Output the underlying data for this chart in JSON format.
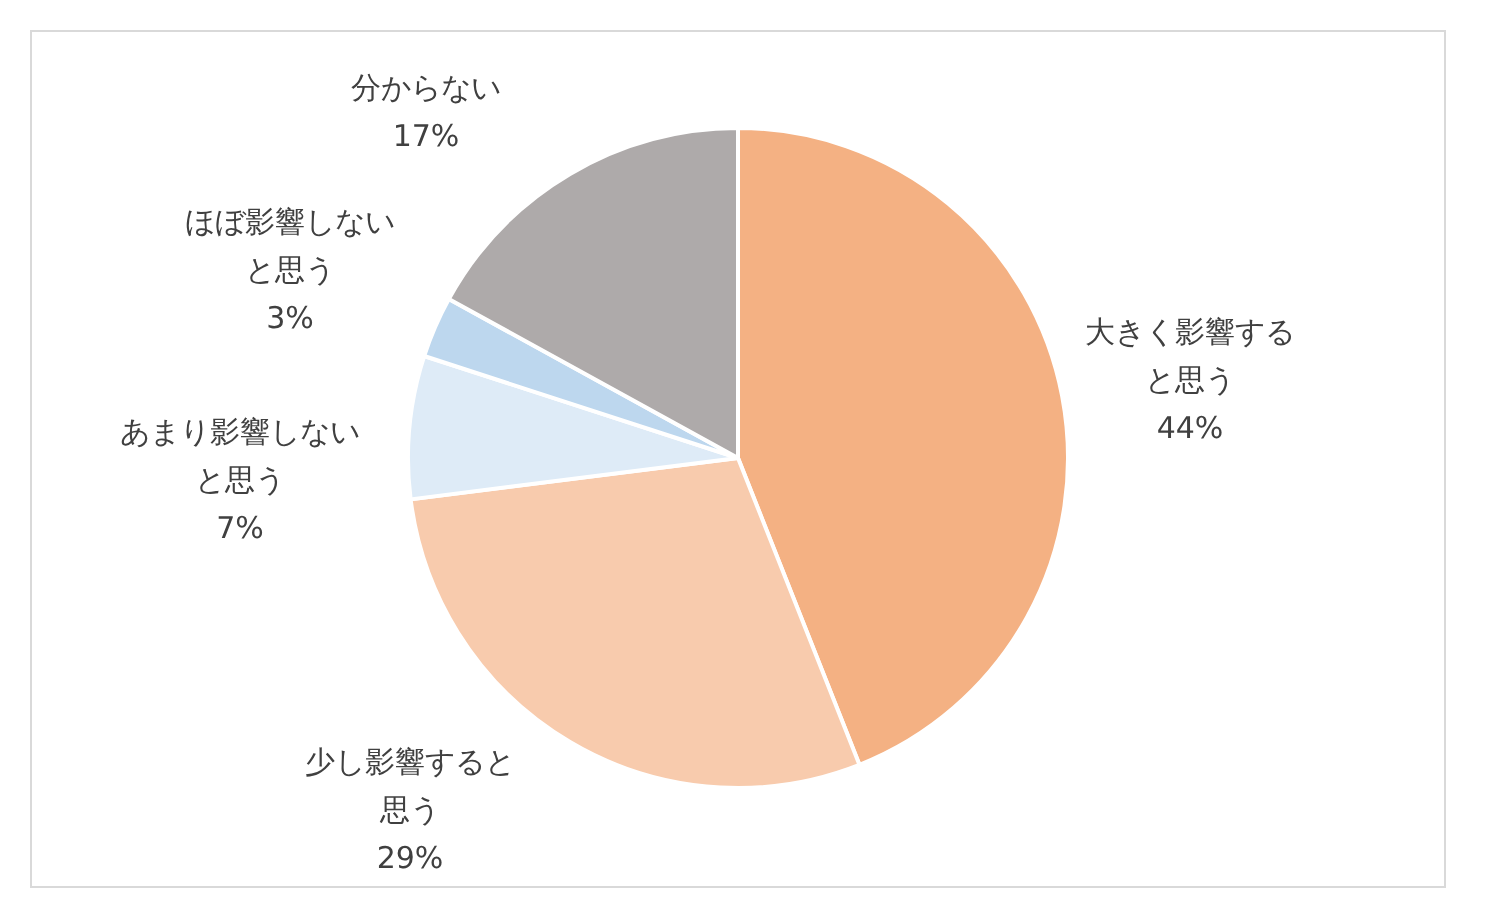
{
  "chart_data": {
    "type": "pie",
    "categories": [
      "大きく影響すると思う",
      "少し影響すると思う",
      "あまり影響しないと思う",
      "ほぼ影響しないと思う",
      "分からない"
    ],
    "values": [
      44,
      29,
      7,
      3,
      17
    ],
    "colors": [
      "#f4b183",
      "#f8cbad",
      "#deebf7",
      "#bdd7ee",
      "#aeaaaa"
    ],
    "value_labels": [
      "44%",
      "29%",
      "7%",
      "3%",
      "17%"
    ]
  }
}
